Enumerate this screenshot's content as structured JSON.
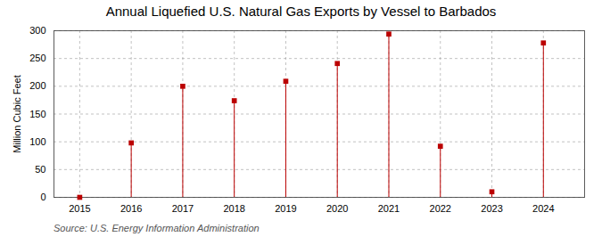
{
  "chart_data": {
    "type": "lollipop",
    "title": "Annual Liquefied U.S. Natural Gas Exports by Vessel to Barbados",
    "ylabel": "Million Cubic Feet",
    "source": "Source: U.S. Energy Information Administration",
    "x": [
      2015,
      2016,
      2017,
      2018,
      2019,
      2020,
      2021,
      2022,
      2023,
      2024
    ],
    "values": [
      0,
      98,
      200,
      174,
      209,
      241,
      294,
      92,
      10,
      278
    ],
    "color": "#bb0000",
    "marker": "square",
    "xlim": [
      2014.5,
      2024.8
    ],
    "xticks": [
      2015,
      2016,
      2017,
      2018,
      2019,
      2020,
      2021,
      2022,
      2023,
      2024
    ],
    "ylim": [
      0,
      300
    ],
    "yticks": [
      0,
      50,
      100,
      150,
      200,
      250,
      300
    ],
    "grid": true
  }
}
